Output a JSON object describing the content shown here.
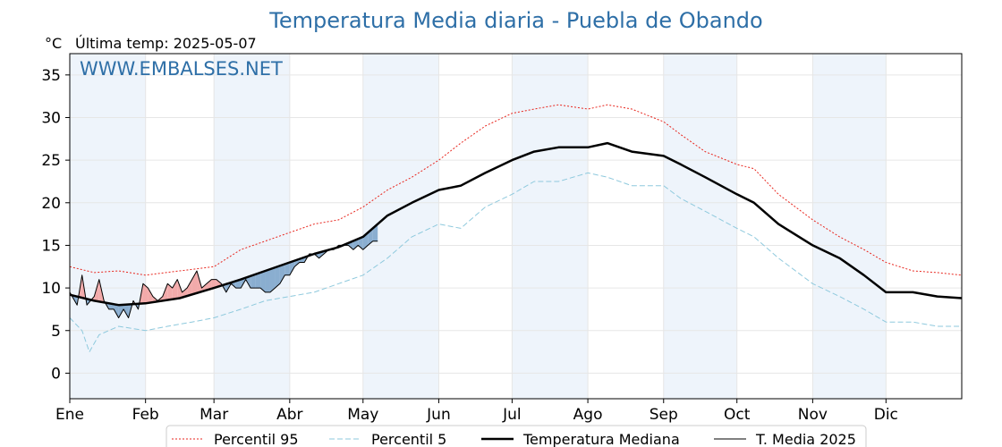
{
  "header": {
    "title": "Temperatura Media diaria - Puebla de Obando",
    "unit": "°C",
    "last_temp": "Última temp: 2025-05-07",
    "watermark": "WWW.EMBALSES.NET"
  },
  "colors": {
    "title": "#2e6fa7",
    "p95": "#e8261e",
    "p5": "#8ec9dd",
    "median": "#000000",
    "current": "#000000",
    "above_fill": "#f2aaaa",
    "below_fill": "#8aaed0",
    "month_shade": "#eef4fb",
    "grid": "#e6e6e6"
  },
  "chart_data": {
    "type": "line",
    "title": "Temperatura Media diaria - Puebla de Obando",
    "ylabel": "°C",
    "xlabel": "",
    "ylim": [
      -3,
      37.5
    ],
    "xlim": [
      0,
      365
    ],
    "yticks": [
      0,
      5,
      10,
      15,
      20,
      25,
      30,
      35
    ],
    "months": [
      {
        "label": "Ene",
        "day": 0
      },
      {
        "label": "Feb",
        "day": 31
      },
      {
        "label": "Mar",
        "day": 59
      },
      {
        "label": "Abr",
        "day": 90
      },
      {
        "label": "May",
        "day": 120
      },
      {
        "label": "Jun",
        "day": 151
      },
      {
        "label": "Jul",
        "day": 181
      },
      {
        "label": "Ago",
        "day": 212
      },
      {
        "label": "Sep",
        "day": 243
      },
      {
        "label": "Oct",
        "day": 273
      },
      {
        "label": "Nov",
        "day": 304
      },
      {
        "label": "Dic",
        "day": 334
      }
    ],
    "shaded_months": [
      [
        0,
        31
      ],
      [
        59,
        90
      ],
      [
        120,
        151
      ],
      [
        181,
        212
      ],
      [
        243,
        273
      ],
      [
        304,
        334
      ]
    ],
    "grid": true,
    "legend_position": "bottom",
    "series": [
      {
        "name": "Percentil 95",
        "style": "dotted",
        "color": "#e8261e",
        "points": [
          [
            0,
            12.5
          ],
          [
            10,
            11.8
          ],
          [
            20,
            12.0
          ],
          [
            31,
            11.5
          ],
          [
            45,
            12.0
          ],
          [
            59,
            12.5
          ],
          [
            70,
            14.5
          ],
          [
            80,
            15.5
          ],
          [
            90,
            16.5
          ],
          [
            100,
            17.5
          ],
          [
            110,
            18.0
          ],
          [
            120,
            19.5
          ],
          [
            130,
            21.5
          ],
          [
            140,
            23.0
          ],
          [
            151,
            25.0
          ],
          [
            160,
            27.0
          ],
          [
            170,
            29.0
          ],
          [
            181,
            30.5
          ],
          [
            190,
            31.0
          ],
          [
            200,
            31.5
          ],
          [
            212,
            31.0
          ],
          [
            220,
            31.5
          ],
          [
            230,
            31.0
          ],
          [
            243,
            29.5
          ],
          [
            250,
            28.0
          ],
          [
            260,
            26.0
          ],
          [
            273,
            24.5
          ],
          [
            280,
            24.0
          ],
          [
            290,
            21.0
          ],
          [
            304,
            18.0
          ],
          [
            315,
            16.0
          ],
          [
            325,
            14.5
          ],
          [
            334,
            13.0
          ],
          [
            345,
            12.0
          ],
          [
            355,
            11.8
          ],
          [
            365,
            11.5
          ]
        ]
      },
      {
        "name": "Percentil 5",
        "style": "dashed",
        "color": "#8ec9dd",
        "points": [
          [
            0,
            6.5
          ],
          [
            5,
            5.0
          ],
          [
            8,
            2.5
          ],
          [
            12,
            4.5
          ],
          [
            20,
            5.5
          ],
          [
            31,
            5.0
          ],
          [
            40,
            5.5
          ],
          [
            50,
            6.0
          ],
          [
            59,
            6.5
          ],
          [
            70,
            7.5
          ],
          [
            80,
            8.5
          ],
          [
            90,
            9.0
          ],
          [
            100,
            9.5
          ],
          [
            110,
            10.5
          ],
          [
            120,
            11.5
          ],
          [
            130,
            13.5
          ],
          [
            140,
            16.0
          ],
          [
            151,
            17.5
          ],
          [
            160,
            17.0
          ],
          [
            170,
            19.5
          ],
          [
            181,
            21.0
          ],
          [
            190,
            22.5
          ],
          [
            200,
            22.5
          ],
          [
            212,
            23.5
          ],
          [
            220,
            23.0
          ],
          [
            230,
            22.0
          ],
          [
            243,
            22.0
          ],
          [
            250,
            20.5
          ],
          [
            260,
            19.0
          ],
          [
            273,
            17.0
          ],
          [
            280,
            16.0
          ],
          [
            290,
            13.5
          ],
          [
            304,
            10.5
          ],
          [
            315,
            9.0
          ],
          [
            325,
            7.5
          ],
          [
            334,
            6.0
          ],
          [
            345,
            6.0
          ],
          [
            355,
            5.5
          ],
          [
            365,
            5.5
          ]
        ]
      },
      {
        "name": "Temperatura Mediana",
        "style": "solid",
        "width": 2.5,
        "color": "#000000",
        "points": [
          [
            0,
            9.2
          ],
          [
            10,
            8.5
          ],
          [
            20,
            8.0
          ],
          [
            31,
            8.2
          ],
          [
            45,
            8.8
          ],
          [
            59,
            10.0
          ],
          [
            70,
            11.0
          ],
          [
            80,
            12.0
          ],
          [
            90,
            13.0
          ],
          [
            100,
            14.0
          ],
          [
            110,
            14.8
          ],
          [
            120,
            16.0
          ],
          [
            130,
            18.5
          ],
          [
            140,
            20.0
          ],
          [
            151,
            21.5
          ],
          [
            160,
            22.0
          ],
          [
            170,
            23.5
          ],
          [
            181,
            25.0
          ],
          [
            190,
            26.0
          ],
          [
            200,
            26.5
          ],
          [
            212,
            26.5
          ],
          [
            220,
            27.0
          ],
          [
            230,
            26.0
          ],
          [
            243,
            25.5
          ],
          [
            250,
            24.5
          ],
          [
            260,
            23.0
          ],
          [
            273,
            21.0
          ],
          [
            280,
            20.0
          ],
          [
            290,
            17.5
          ],
          [
            304,
            15.0
          ],
          [
            315,
            13.5
          ],
          [
            325,
            11.5
          ],
          [
            334,
            9.5
          ],
          [
            345,
            9.5
          ],
          [
            355,
            9.0
          ],
          [
            365,
            8.8
          ]
        ]
      },
      {
        "name": "T. Media 2025",
        "style": "solid",
        "width": 1,
        "color": "#000000",
        "points": [
          [
            0,
            9.5
          ],
          [
            3,
            8.0
          ],
          [
            5,
            11.5
          ],
          [
            7,
            8.0
          ],
          [
            10,
            9.0
          ],
          [
            12,
            11.0
          ],
          [
            14,
            8.5
          ],
          [
            16,
            7.5
          ],
          [
            18,
            7.5
          ],
          [
            20,
            6.5
          ],
          [
            22,
            7.5
          ],
          [
            24,
            6.5
          ],
          [
            26,
            8.5
          ],
          [
            28,
            7.5
          ],
          [
            30,
            10.5
          ],
          [
            32,
            10.0
          ],
          [
            34,
            9.0
          ],
          [
            36,
            8.5
          ],
          [
            38,
            9.0
          ],
          [
            40,
            10.5
          ],
          [
            42,
            10.0
          ],
          [
            44,
            11.0
          ],
          [
            46,
            9.5
          ],
          [
            48,
            10.0
          ],
          [
            50,
            11.0
          ],
          [
            52,
            12.0
          ],
          [
            54,
            10.0
          ],
          [
            56,
            10.5
          ],
          [
            58,
            11.0
          ],
          [
            60,
            11.0
          ],
          [
            62,
            10.5
          ],
          [
            64,
            9.5
          ],
          [
            66,
            10.5
          ],
          [
            68,
            10.0
          ],
          [
            70,
            10.0
          ],
          [
            72,
            11.0
          ],
          [
            74,
            10.0
          ],
          [
            76,
            10.0
          ],
          [
            78,
            10.0
          ],
          [
            80,
            9.5
          ],
          [
            82,
            9.5
          ],
          [
            84,
            10.0
          ],
          [
            86,
            10.5
          ],
          [
            88,
            11.5
          ],
          [
            90,
            11.5
          ],
          [
            92,
            12.5
          ],
          [
            94,
            13.0
          ],
          [
            96,
            13.0
          ],
          [
            98,
            14.0
          ],
          [
            100,
            14.0
          ],
          [
            102,
            13.5
          ],
          [
            104,
            14.0
          ],
          [
            106,
            14.5
          ],
          [
            108,
            14.5
          ],
          [
            110,
            15.0
          ],
          [
            112,
            15.0
          ],
          [
            114,
            15.0
          ],
          [
            116,
            14.5
          ],
          [
            118,
            15.0
          ],
          [
            120,
            14.5
          ],
          [
            122,
            15.0
          ],
          [
            124,
            15.5
          ],
          [
            126,
            15.5
          ]
        ]
      }
    ]
  },
  "legend": [
    {
      "label": "Percentil 95",
      "style": "dotted",
      "color": "#e8261e"
    },
    {
      "label": "Percentil 5",
      "style": "dashed",
      "color": "#8ec9dd"
    },
    {
      "label": "Temperatura Mediana",
      "style": "solid-thick",
      "color": "#000000"
    },
    {
      "label": "T. Media 2025",
      "style": "solid",
      "color": "#000000"
    }
  ]
}
